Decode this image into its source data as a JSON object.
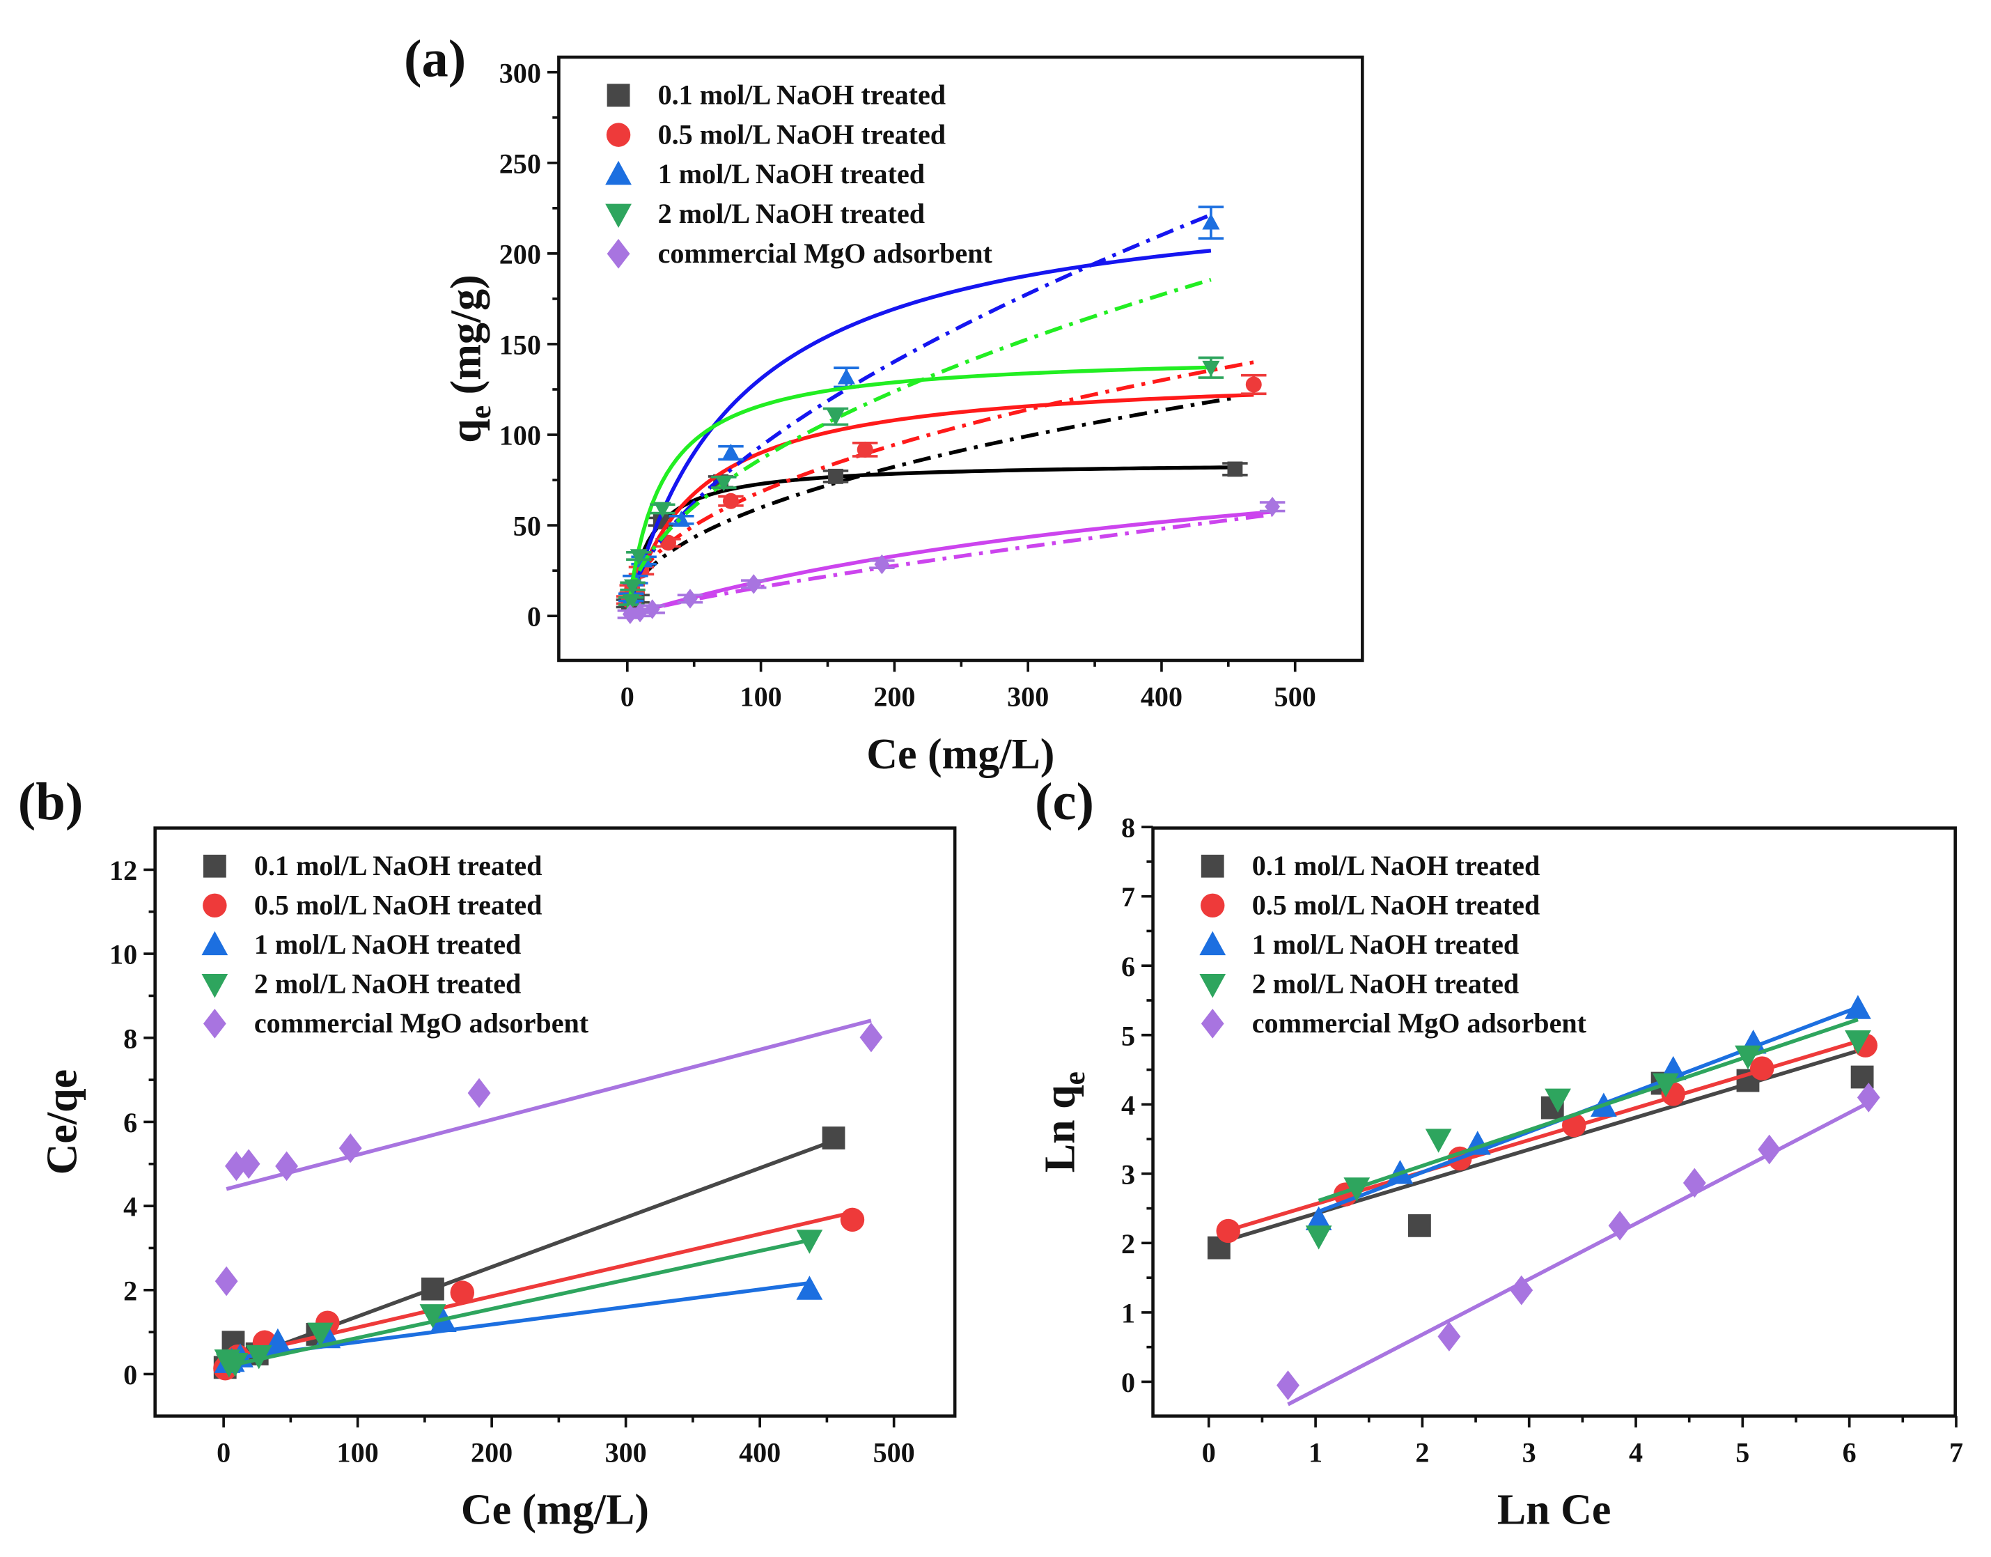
{
  "chart_data": [
    {
      "id": "a",
      "panel_label": "(a)",
      "type": "scatter",
      "title": "",
      "xlabel": "Ce (mg/L)",
      "ylabel_main": "q",
      "ylabel_sub": "e",
      "ylabel_rest": " (mg/g)",
      "xlim": [
        -50,
        550
      ],
      "ylim": [
        -25,
        300
      ],
      "xticks": [
        0,
        100,
        200,
        300,
        400,
        500
      ],
      "yticks": [
        0,
        50,
        100,
        150,
        200,
        250,
        300
      ],
      "legend_position": "top-left",
      "fits": "solid = Langmuir, dash-dot = Freundlich"
    },
    {
      "id": "b",
      "panel_label": "(b)",
      "type": "scatter",
      "xlabel": "Ce (mg/L)",
      "ylabel": "Ce/qe",
      "xlim": [
        -50,
        550
      ],
      "ylim": [
        -1,
        13
      ],
      "xticks": [
        0,
        100,
        200,
        300,
        400,
        500
      ],
      "yticks": [
        0,
        2,
        4,
        6,
        8,
        10,
        12
      ],
      "legend_position": "top-left"
    },
    {
      "id": "c",
      "panel_label": "(c)",
      "type": "scatter",
      "xlabel": "Ln Ce",
      "ylabel_main": "Ln q",
      "ylabel_sub": "e",
      "xlim": [
        -0.5,
        7
      ],
      "ylim": [
        -0.5,
        8
      ],
      "xticks": [
        0,
        1,
        2,
        3,
        4,
        5,
        6,
        7
      ],
      "yticks": [
        0,
        1,
        2,
        3,
        4,
        5,
        6,
        7,
        8
      ],
      "legend_position": "top-left"
    }
  ],
  "series": [
    {
      "name": "0.1 mol/L NaOH treated",
      "marker": "square",
      "color": "#474747",
      "line_color_a": "#000000",
      "line_color_bc": "#474747",
      "Ce": [
        1.1,
        7.2,
        25,
        70,
        156,
        455
      ],
      "qe": [
        6.9,
        9.5,
        52,
        74,
        77,
        81
      ],
      "langmuir": {
        "qm": 85,
        "KL": 0.06
      },
      "freundlich": {
        "lnKF": 1.963,
        "inv_n": 0.462
      }
    },
    {
      "name": "0.5 mol/L NaOH treated",
      "marker": "circle",
      "color": "#ee3a3a",
      "line_color_a": "#ff1a1a",
      "line_color_bc": "#ee3a3a",
      "Ce": [
        1.2,
        3.6,
        10.5,
        30.6,
        77.5,
        178,
        469
      ],
      "qe": [
        8.8,
        14.9,
        25.0,
        40.4,
        63.4,
        91.8,
        127.7
      ],
      "langmuir": {
        "qm": 135,
        "KL": 0.02
      },
      "freundlich": {
        "lnKF": 2.1,
        "inv_n": 0.462
      }
    },
    {
      "name": "1 mol/L NaOH treated",
      "marker": "triangle-up",
      "color": "#1c6fe0",
      "line_color_a": "#1515f0",
      "line_color_bc": "#1c6fe0",
      "Ce": [
        2.8,
        6.0,
        12.4,
        40.4,
        77.5,
        164,
        437
      ],
      "qe": [
        10.3,
        20.1,
        30.6,
        53.0,
        90.0,
        131.6,
        217
      ],
      "langmuir": {
        "qm": 240,
        "KL": 0.012
      },
      "freundlich": {
        "lnKF": 1.855,
        "inv_n": 0.583
      }
    },
    {
      "name": "2 mol/L NaOH treated",
      "marker": "triangle-down",
      "color": "#2ea55e",
      "line_color_a": "#22ee22",
      "line_color_bc": "#2ea55e",
      "Ce": [
        2.8,
        4.0,
        8.6,
        26.3,
        72.2,
        156,
        437
      ],
      "qe": [
        8.2,
        16.4,
        33.1,
        59.1,
        73.7,
        110,
        137
      ],
      "langmuir": {
        "qm": 145,
        "KL": 0.04
      },
      "freundlich": {
        "lnKF": 2.08,
        "inv_n": 0.517
      }
    },
    {
      "name": "commercial MgO adsorbent",
      "marker": "diamond",
      "color": "#a874e0",
      "line_color_a": "#cc44ee",
      "line_color_bc": "#a874e0",
      "Ce": [
        2.1,
        9.5,
        18.7,
        47,
        94.6,
        190.6,
        483
      ],
      "qe": [
        0.95,
        1.92,
        3.74,
        9.5,
        17.6,
        28.5,
        60.3
      ],
      "langmuir": {
        "qm": 120,
        "KL": 0.0019
      },
      "freundlich": {
        "lnKF": -0.92,
        "inv_n": 0.8
      }
    }
  ]
}
